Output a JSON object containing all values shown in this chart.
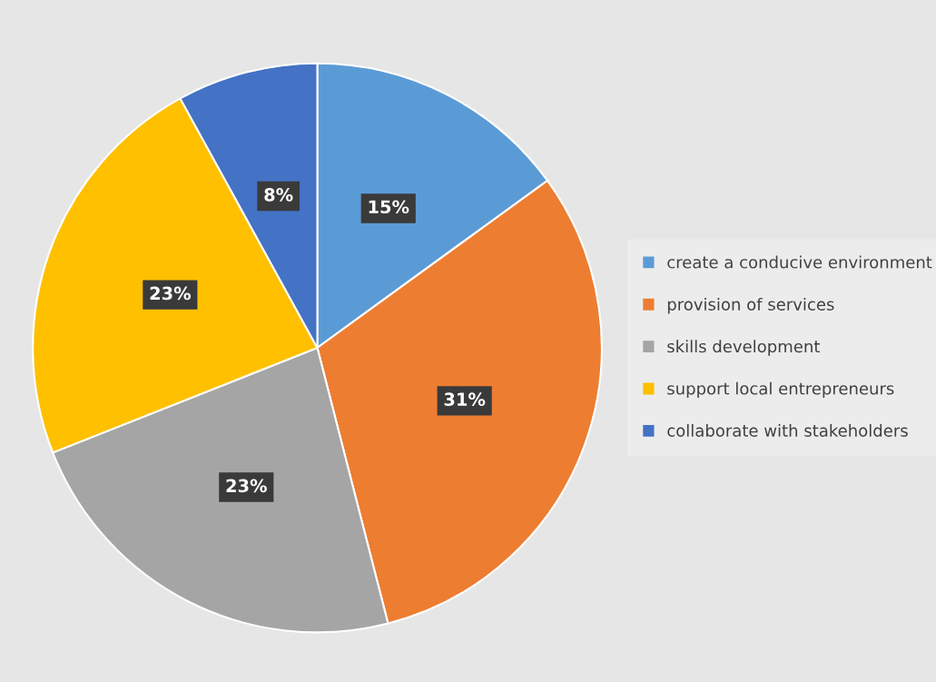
{
  "chart_data": {
    "type": "pie",
    "categories": [
      "create a conducive environment",
      "provision of services",
      "skills development",
      "support local entrepreneurs",
      "collaborate with stakeholders"
    ],
    "values": [
      15,
      31,
      23,
      23,
      8
    ],
    "colors": [
      "#5b9bd5",
      "#ed7d31",
      "#a5a5a5",
      "#ffc000",
      "#4472c4"
    ],
    "value_labels": [
      "15%",
      "31%",
      "23%",
      "23%",
      "8%"
    ],
    "legend": "right"
  }
}
